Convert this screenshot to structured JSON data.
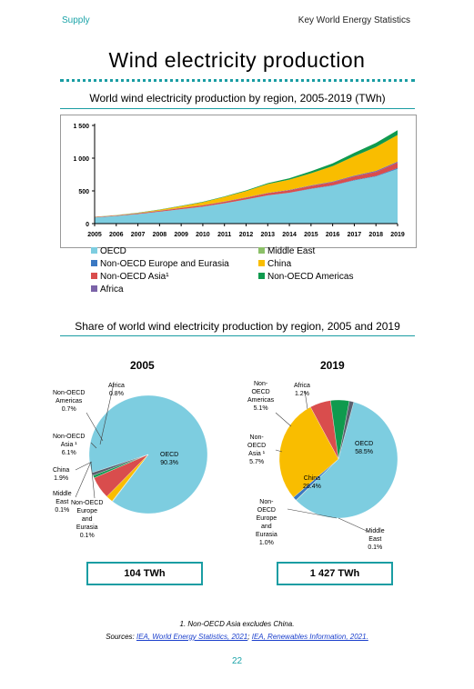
{
  "header": {
    "section": "Supply",
    "publication": "Key World Energy Statistics"
  },
  "page_title": "Wind electricity production",
  "chart_data": [
    {
      "type": "area",
      "title": "World wind electricity production by region, 2005-2019 (TWh)",
      "x": [
        "2005",
        "2006",
        "2007",
        "2008",
        "2009",
        "2010",
        "2011",
        "2012",
        "2013",
        "2014",
        "2015",
        "2016",
        "2017",
        "2018",
        "2019"
      ],
      "ylim": [
        0,
        1500
      ],
      "yticks": [
        0,
        500,
        1000,
        1500
      ],
      "ytick_labels": [
        "0",
        "500",
        "1 000",
        "1 500"
      ],
      "stacked": true,
      "legend_position": "bottom",
      "series": [
        {
          "name": "OECD",
          "color": "#7dcde0",
          "values": [
            94,
            116,
            145,
            182,
            220,
            258,
            310,
            368,
            430,
            470,
            530,
            580,
            660,
            720,
            835
          ]
        },
        {
          "name": "Non-OECD Europe and Eurasia",
          "color": "#3a78c2",
          "values": [
            0.1,
            0.1,
            0.2,
            0.3,
            0.5,
            0.8,
            1,
            1.5,
            2,
            3,
            4,
            5,
            6,
            8,
            14
          ]
        },
        {
          "name": "Non-OECD Asia¹",
          "color": "#d94d4d",
          "values": [
            6,
            8,
            11,
            13,
            18,
            20,
            23,
            27,
            31,
            36,
            41,
            47,
            54,
            62,
            81
          ]
        },
        {
          "name": "Africa",
          "color": "#7b63a8",
          "values": [
            1,
            1,
            1.5,
            2,
            2.5,
            3,
            3.5,
            4,
            5,
            7,
            9,
            11,
            13,
            15,
            17
          ]
        },
        {
          "name": "Middle East",
          "color": "#8cc068",
          "values": [
            0.1,
            0.1,
            0.1,
            0.1,
            0.1,
            0.2,
            0.2,
            0.3,
            0.3,
            0.4,
            0.5,
            0.6,
            0.8,
            1,
            1.5
          ]
        },
        {
          "name": "China",
          "color": "#f9bd00",
          "values": [
            2,
            4,
            6,
            15,
            27,
            45,
            70,
            96,
            135,
            155,
            185,
            235,
            295,
            365,
            405
          ]
        },
        {
          "name": "Non-OECD Americas",
          "color": "#0f9a4e",
          "values": [
            0.7,
            1,
            2,
            3,
            4,
            6,
            8,
            10,
            14,
            21,
            31,
            42,
            52,
            61,
            73
          ]
        }
      ]
    },
    {
      "type": "pie",
      "title": "2005",
      "total_label": "104 TWh",
      "slices": [
        {
          "name": "OECD",
          "label": "OECD\n90.3%",
          "value": 90.3,
          "color": "#7dcde0"
        },
        {
          "name": "Non-OECD Europe and Eurasia",
          "label": "Non-OECD\nEurope\nand\nEurasia\n0.1%",
          "value": 0.1,
          "color": "#3a78c2"
        },
        {
          "name": "Middle East",
          "label": "Middle\nEast\n0.1%",
          "value": 0.1,
          "color": "#8cc068"
        },
        {
          "name": "China",
          "label": "China\n1.9%",
          "value": 1.9,
          "color": "#f9bd00"
        },
        {
          "name": "Non-OECD Asia",
          "label": "Non-OECD\nAsia ¹\n6.1%",
          "value": 6.1,
          "color": "#d94d4d"
        },
        {
          "name": "Non-OECD Americas",
          "label": "Non-OECD\nAmericas\n0.7%",
          "value": 0.7,
          "color": "#0f9a4e"
        },
        {
          "name": "Africa",
          "label": "Africa\n0.8%",
          "value": 0.8,
          "color": "#5a5f6e"
        }
      ]
    },
    {
      "type": "pie",
      "title": "2019",
      "total_label": "1 427 TWh",
      "slices": [
        {
          "name": "OECD",
          "label": "OECD\n58.5%",
          "value": 58.5,
          "color": "#7dcde0"
        },
        {
          "name": "Middle East",
          "label": "Middle\nEast\n0.1%",
          "value": 0.1,
          "color": "#8cc068"
        },
        {
          "name": "Non-OECD Europe and Eurasia",
          "label": "Non-\nOECD\nEurope\nand\nEurasia\n1.0%",
          "value": 1.0,
          "color": "#3a78c2"
        },
        {
          "name": "China",
          "label": "China\n28.4%",
          "value": 28.4,
          "color": "#f9bd00"
        },
        {
          "name": "Non-OECD Asia",
          "label": "Non-\nOECD\nAsia ¹\n5.7%",
          "value": 5.7,
          "color": "#d94d4d"
        },
        {
          "name": "Non-OECD Americas",
          "label": "Non-\nOECD\nAmericas\n5.1%",
          "value": 5.1,
          "color": "#0f9a4e"
        },
        {
          "name": "Africa",
          "label": "Africa\n1.2%",
          "value": 1.2,
          "color": "#5a5f6e"
        }
      ]
    }
  ],
  "pie_section_title": "Share of world wind electricity production by region, 2005 and 2019",
  "footnote": "1. Non-OECD Asia excludes China.",
  "sources": {
    "prefix": "Sources: ",
    "link1": "IEA, World Energy Statistics, 2021",
    "separator": "; ",
    "link2": "IEA, Renewables Information, 2021."
  },
  "page_number": "22"
}
